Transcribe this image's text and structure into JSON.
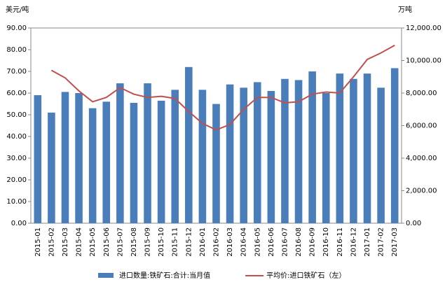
{
  "chart_data": {
    "type": "bar-line",
    "y_label": "美元/吨",
    "y2_label": "万吨",
    "categories": [
      "2015-01",
      "2015-02",
      "2015-03",
      "2015-04",
      "2015-05",
      "2015-06",
      "2015-07",
      "2015-08",
      "2015-09",
      "2015-10",
      "2015-11",
      "2015-12",
      "2016-01",
      "2016-02",
      "2016-03",
      "2016-04",
      "2016-05",
      "2016-06",
      "2016-07",
      "2016-08",
      "2016-09",
      "2016-10",
      "2016-11",
      "2016-12",
      "2017-01",
      "2017-02",
      "2017-03"
    ],
    "series": [
      {
        "name": "进口数量:铁矿石:合计:当月值",
        "type": "bar",
        "axis": "y2",
        "color": "#4a7ebb",
        "values": [
          7870,
          6800,
          8070,
          8000,
          7070,
          7470,
          8600,
          7400,
          8600,
          7530,
          8200,
          9600,
          8200,
          7330,
          8530,
          8330,
          8670,
          8130,
          8870,
          8800,
          9330,
          8000,
          9200,
          8870,
          9200,
          8330,
          9530
        ]
      },
      {
        "name": "平均价:进口铁矿石（左）",
        "type": "line",
        "axis": "y",
        "color": "#c0504d",
        "values": [
          null,
          70.5,
          67,
          61,
          56,
          58,
          62.5,
          59.5,
          58,
          58.5,
          57.5,
          51.5,
          46,
          43,
          45.5,
          52.5,
          58,
          58,
          55.5,
          56,
          59.5,
          60.5,
          60,
          67.5,
          75.5,
          78.5,
          82
        ]
      }
    ],
    "ylim": [
      0,
      90
    ],
    "yticks": [
      {
        "value": 0,
        "label": "0.00"
      },
      {
        "value": 10,
        "label": "10.00"
      },
      {
        "value": 20,
        "label": "20.00"
      },
      {
        "value": 30,
        "label": "30.00"
      },
      {
        "value": 40,
        "label": "40.00"
      },
      {
        "value": 50,
        "label": "50.00"
      },
      {
        "value": 60,
        "label": "60.00"
      },
      {
        "value": 70,
        "label": "70.00"
      },
      {
        "value": 80,
        "label": "80.00"
      },
      {
        "value": 90,
        "label": "90.00"
      }
    ],
    "y2lim": [
      0,
      12000
    ],
    "y2ticks": [
      {
        "value": 0,
        "label": "0.00"
      },
      {
        "value": 2000,
        "label": "2,000.00"
      },
      {
        "value": 4000,
        "label": "4,000.00"
      },
      {
        "value": 6000,
        "label": "6,000.00"
      },
      {
        "value": 8000,
        "label": "8,000.00"
      },
      {
        "value": 10000,
        "label": "10,000.00"
      },
      {
        "value": 12000,
        "label": "12,000.00"
      }
    ],
    "grid": false
  }
}
